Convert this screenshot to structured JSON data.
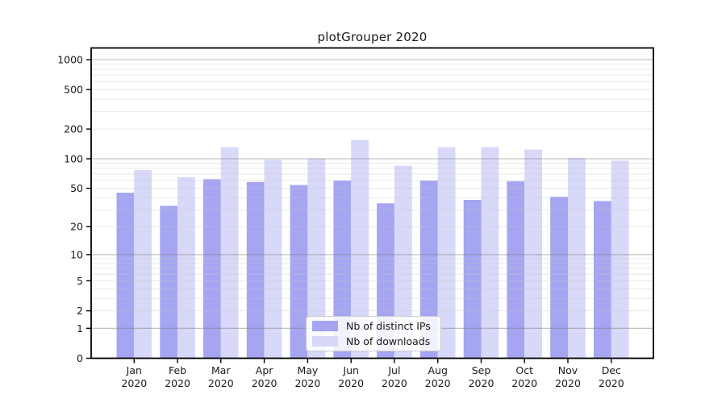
{
  "chart_data": {
    "type": "bar",
    "title": "plotGrouper 2020",
    "categories": [
      "Jan 2020",
      "Feb 2020",
      "Mar 2020",
      "Apr 2020",
      "May 2020",
      "Jun 2020",
      "Jul 2020",
      "Aug 2020",
      "Sep 2020",
      "Oct 2020",
      "Nov 2020",
      "Dec 2020"
    ],
    "series": [
      {
        "name": "Nb of distinct IPs",
        "color": "#a5a5f2",
        "values": [
          45,
          33,
          62,
          58,
          54,
          60,
          35,
          60,
          38,
          59,
          41,
          37
        ]
      },
      {
        "name": "Nb of downloads",
        "color": "#d8d8f9",
        "values": [
          77,
          65,
          131,
          98,
          101,
          155,
          85,
          131,
          131,
          124,
          102,
          96
        ]
      }
    ],
    "xlabel": "",
    "ylabel": "",
    "y_ticks": [
      1000,
      500,
      200,
      100,
      50,
      20,
      10,
      5,
      2,
      1,
      0
    ],
    "y_scale": "log10(value+1)",
    "ylim": [
      0,
      1310
    ],
    "grid": "on",
    "gridlines_above_bars": true,
    "legend_position": "inside-bottom-center",
    "frame_color": "#000000",
    "major_grid_color": "#808080",
    "minor_grid_color": "#c8c8c8"
  }
}
